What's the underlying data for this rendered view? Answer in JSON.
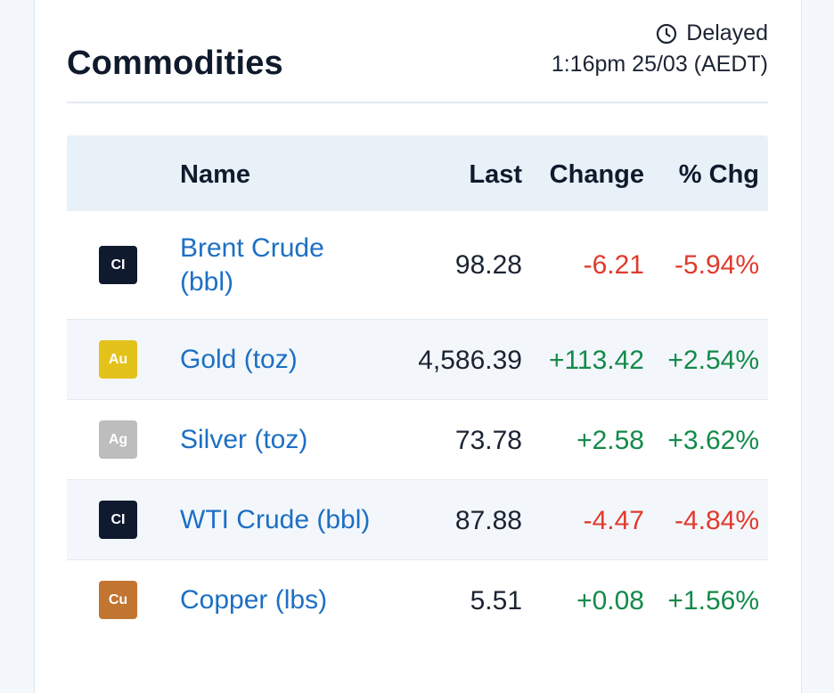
{
  "header": {
    "title": "Commodities",
    "status": "Delayed",
    "timestamp": "1:16pm 25/03 (AEDT)"
  },
  "table": {
    "columns": {
      "name": "Name",
      "last": "Last",
      "change": "Change",
      "pct": "% Chg"
    },
    "rows": [
      {
        "badge": "CI",
        "badge_color": "#101a2e",
        "name": "Brent Crude (bbl)",
        "last": "98.28",
        "change": "-6.21",
        "pct": "-5.94%",
        "dir": "neg"
      },
      {
        "badge": "Au",
        "badge_color": "#e3c21b",
        "name": "Gold (toz)",
        "last": "4,586.39",
        "change": "+113.42",
        "pct": "+2.54%",
        "dir": "pos"
      },
      {
        "badge": "Ag",
        "badge_color": "#bdbdbd",
        "name": "Silver (toz)",
        "last": "73.78",
        "change": "+2.58",
        "pct": "+3.62%",
        "dir": "pos"
      },
      {
        "badge": "CI",
        "badge_color": "#101a2e",
        "name": "WTI Crude (bbl)",
        "last": "87.88",
        "change": "-4.47",
        "pct": "-4.84%",
        "dir": "neg"
      },
      {
        "badge": "Cu",
        "badge_color": "#c27431",
        "name": "Copper (lbs)",
        "last": "5.51",
        "change": "+0.08",
        "pct": "+1.56%",
        "dir": "pos"
      }
    ]
  },
  "colors": {
    "link": "#1d6fc4",
    "negative": "#e03a2c",
    "positive": "#138a4a",
    "header_bg": "#e8f0f8"
  }
}
